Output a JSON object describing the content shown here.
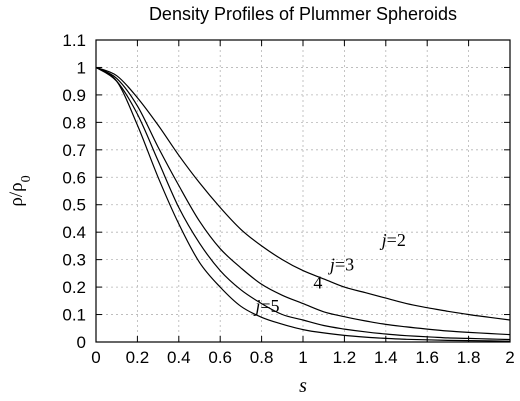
{
  "chart_data": {
    "type": "line",
    "title": "Density Profiles of Plummer Spheroids",
    "xlabel": "s",
    "ylabel_main": "ρ/ρ",
    "ylabel_sub": "0",
    "xlim": [
      0,
      2
    ],
    "ylim": [
      0,
      1.1
    ],
    "grid": true,
    "x_ticks": [
      "0",
      "0.2",
      "0.4",
      "0.6",
      "0.8",
      "1",
      "1.2",
      "1.4",
      "1.6",
      "1.8",
      "2"
    ],
    "y_ticks": [
      "0",
      "0.1",
      "0.2",
      "0.3",
      "0.4",
      "0.5",
      "0.6",
      "0.7",
      "0.8",
      "0.9",
      "1",
      "1.1"
    ],
    "x": [
      0,
      0.1,
      0.2,
      0.3,
      0.4,
      0.5,
      0.6,
      0.7,
      0.8,
      0.9,
      1.0,
      1.1,
      1.2,
      1.3,
      1.4,
      1.5,
      1.6,
      1.7,
      1.8,
      1.9,
      2.0
    ],
    "series": [
      {
        "label_italic": "j",
        "label_rest": "=2",
        "values": [
          1.0,
          0.97,
          0.89,
          0.79,
          0.68,
          0.58,
          0.49,
          0.41,
          0.35,
          0.3,
          0.26,
          0.23,
          0.2,
          0.18,
          0.16,
          0.14,
          0.125,
          0.112,
          0.1,
          0.09,
          0.08
        ]
      },
      {
        "label_italic": "j",
        "label_rest": "=3",
        "values": [
          1.0,
          0.96,
          0.86,
          0.71,
          0.57,
          0.44,
          0.34,
          0.27,
          0.21,
          0.17,
          0.14,
          0.11,
          0.092,
          0.077,
          0.064,
          0.055,
          0.047,
          0.04,
          0.035,
          0.031,
          0.027
        ]
      },
      {
        "label_italic": "",
        "label_rest": "4",
        "values": [
          1.0,
          0.95,
          0.83,
          0.66,
          0.49,
          0.36,
          0.26,
          0.19,
          0.14,
          0.1,
          0.08,
          0.06,
          0.047,
          0.037,
          0.029,
          0.023,
          0.019,
          0.015,
          0.013,
          0.011,
          0.009
        ]
      },
      {
        "label_italic": "j",
        "label_rest": "=5",
        "values": [
          1.0,
          0.95,
          0.79,
          0.6,
          0.43,
          0.29,
          0.2,
          0.13,
          0.09,
          0.065,
          0.045,
          0.033,
          0.024,
          0.018,
          0.013,
          0.01,
          0.008,
          0.006,
          0.005,
          0.004,
          0.003
        ]
      }
    ]
  }
}
